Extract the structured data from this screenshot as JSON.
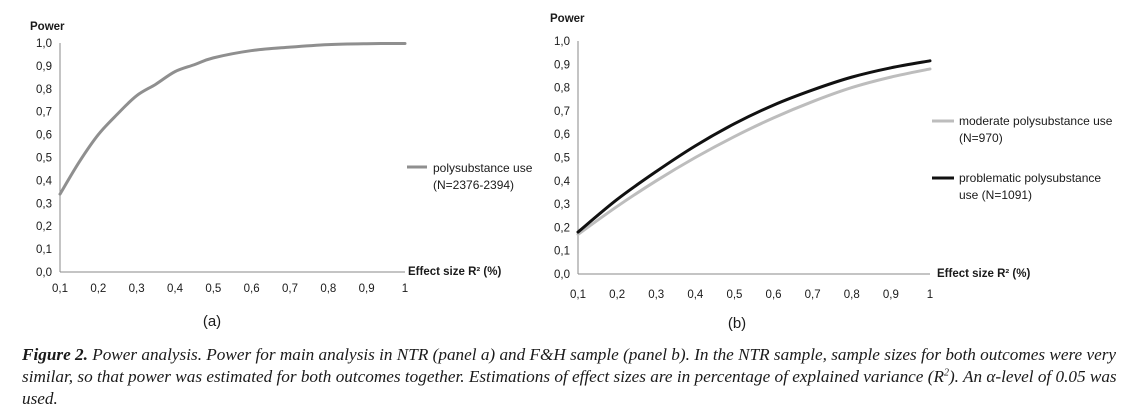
{
  "chart_data": [
    {
      "panel": "a",
      "type": "line",
      "panel_label": "(a)",
      "ylabel": "Power",
      "xlabel": "Effect size R² (%)",
      "x_ticks": [
        "0,1",
        "0,2",
        "0,3",
        "0,4",
        "0,5",
        "0,6",
        "0,7",
        "0,8",
        "0,9",
        "1"
      ],
      "y_ticks": [
        "0,0",
        "0,1",
        "0,2",
        "0,3",
        "0,4",
        "0,5",
        "0,6",
        "0,7",
        "0,8",
        "0,9",
        "1,0"
      ],
      "xlim": [
        0.1,
        1.0
      ],
      "ylim": [
        0.0,
        1.0
      ],
      "grid": false,
      "legend_position": "right",
      "series": [
        {
          "name": "polysubstance use",
          "sample": "(N=2376-2394)",
          "color": "#8f8f8f",
          "x": [
            0.1,
            0.15,
            0.2,
            0.25,
            0.3,
            0.35,
            0.4,
            0.45,
            0.5,
            0.6,
            0.7,
            0.8,
            0.9,
            1.0
          ],
          "y": [
            0.34,
            0.48,
            0.6,
            0.69,
            0.77,
            0.82,
            0.875,
            0.905,
            0.935,
            0.967,
            0.982,
            0.993,
            0.997,
            0.998
          ]
        }
      ]
    },
    {
      "panel": "b",
      "type": "line",
      "panel_label": "(b)",
      "ylabel": "Power",
      "xlabel": "Effect size R² (%)",
      "x_ticks": [
        "0,1",
        "0,2",
        "0,3",
        "0,4",
        "0,5",
        "0,6",
        "0,7",
        "0,8",
        "0,9",
        "1"
      ],
      "y_ticks": [
        "0,0",
        "0,1",
        "0,2",
        "0,3",
        "0,4",
        "0,5",
        "0,6",
        "0,7",
        "0,8",
        "0,9",
        "1,0"
      ],
      "xlim": [
        0.1,
        1.0
      ],
      "ylim": [
        0.0,
        1.0
      ],
      "grid": false,
      "legend_position": "right",
      "series": [
        {
          "name": "moderate polysubstance use",
          "sample": "(N=970)",
          "color": "#bdbdbd",
          "x": [
            0.1,
            0.2,
            0.3,
            0.4,
            0.5,
            0.6,
            0.7,
            0.8,
            0.9,
            1.0
          ],
          "y": [
            0.17,
            0.29,
            0.4,
            0.5,
            0.59,
            0.67,
            0.74,
            0.8,
            0.845,
            0.88
          ]
        },
        {
          "name": "problematic polysubstance",
          "sample": "use (N=1091)",
          "color": "#111111",
          "x": [
            0.1,
            0.2,
            0.3,
            0.4,
            0.5,
            0.6,
            0.7,
            0.8,
            0.9,
            1.0
          ],
          "y": [
            0.18,
            0.32,
            0.44,
            0.55,
            0.645,
            0.725,
            0.79,
            0.845,
            0.885,
            0.915
          ]
        }
      ]
    }
  ],
  "caption": {
    "label": "Figure 2.",
    "text_part1": " Power analysis. Power for main analysis in NTR (panel a) and F&H sample (panel b). In the NTR sample, sample sizes for both outcomes were very similar, so that power was estimated for both outcomes together. Estimations of effect sizes are in percentage of explained variance (R",
    "sup": "2",
    "text_part2": "). An α-level of 0.05 was used."
  }
}
